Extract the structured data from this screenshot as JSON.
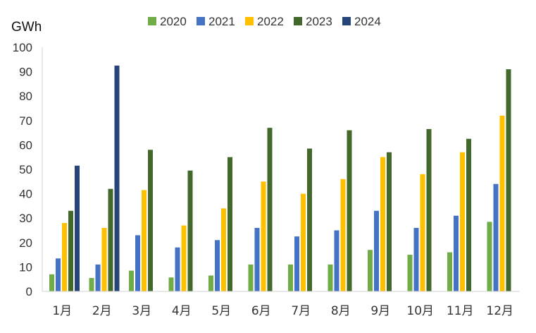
{
  "chart_data": {
    "type": "bar",
    "unit_label": "GWh",
    "categories": [
      "1月",
      "2月",
      "3月",
      "4月",
      "5月",
      "6月",
      "7月",
      "8月",
      "9月",
      "10月",
      "11月",
      "12月"
    ],
    "ylim": [
      0,
      100
    ],
    "yticks": [
      0,
      10,
      20,
      30,
      40,
      50,
      60,
      70,
      80,
      90,
      100
    ],
    "grid": false,
    "legend_position": "top",
    "series": [
      {
        "name": "2020",
        "color": "#70ad47",
        "values": [
          7,
          5.5,
          8.5,
          5.7,
          6.5,
          11,
          11,
          11,
          17,
          15,
          16,
          28.5
        ]
      },
      {
        "name": "2021",
        "color": "#4472c4",
        "values": [
          13.5,
          11,
          23,
          18,
          21,
          26,
          22.5,
          25,
          33,
          26,
          31,
          44
        ]
      },
      {
        "name": "2022",
        "color": "#ffc000",
        "values": [
          28,
          26,
          41.5,
          27,
          34,
          45,
          40,
          46,
          55,
          48,
          57,
          72
        ]
      },
      {
        "name": "2023",
        "color": "#43682b",
        "values": [
          33,
          42,
          58,
          49.5,
          55,
          67,
          58.5,
          66,
          57,
          66.5,
          62.5,
          91
        ]
      },
      {
        "name": "2024",
        "color": "#264478",
        "values": [
          51.5,
          92.5,
          null,
          null,
          null,
          null,
          null,
          null,
          null,
          null,
          null,
          null
        ]
      }
    ]
  }
}
